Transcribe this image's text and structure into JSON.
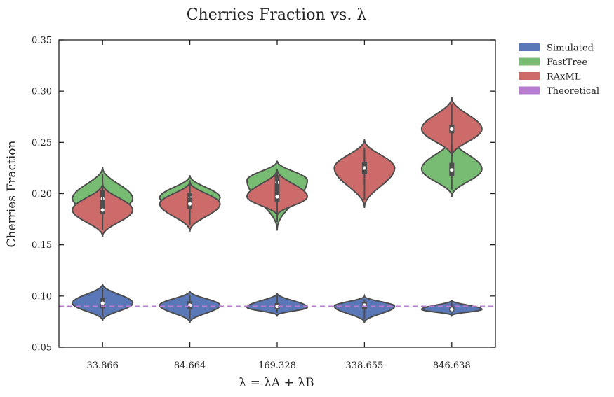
{
  "chart_data": {
    "type": "violin",
    "title": "Cherries Fraction vs. λ",
    "xlabel": "λ = λA + λB",
    "ylabel": "Cherries Fraction",
    "categories": [
      "33.866",
      "84.664",
      "169.328",
      "338.655",
      "846.638"
    ],
    "ylim": [
      0.05,
      0.35
    ],
    "yticks": [
      "0.05",
      "0.10",
      "0.15",
      "0.20",
      "0.25",
      "0.30",
      "0.35"
    ],
    "grid": false,
    "legend_position": "outside-right",
    "series": [
      {
        "name": "Simulated",
        "color": "#5a78b8",
        "violins": [
          {
            "min": 0.076,
            "max": 0.112,
            "mode": 0.093,
            "q1": 0.088,
            "median": 0.093,
            "q3": 0.098
          },
          {
            "min": 0.074,
            "max": 0.105,
            "mode": 0.091,
            "q1": 0.087,
            "median": 0.091,
            "q3": 0.095
          },
          {
            "min": 0.081,
            "max": 0.103,
            "mode": 0.089,
            "q1": 0.087,
            "median": 0.09,
            "q3": 0.093
          },
          {
            "min": 0.074,
            "max": 0.1,
            "mode": 0.09,
            "q1": 0.087,
            "median": 0.091,
            "q3": 0.094
          },
          {
            "min": 0.081,
            "max": 0.096,
            "mode": 0.087,
            "q1": 0.085,
            "median": 0.087,
            "q3": 0.09
          }
        ]
      },
      {
        "name": "FastTree",
        "color": "#78bb72",
        "violins": [
          {
            "min": 0.17,
            "max": 0.226,
            "mode": 0.195,
            "q1": 0.187,
            "median": 0.195,
            "q3": 0.203
          },
          {
            "min": 0.176,
            "max": 0.218,
            "mode": 0.196,
            "q1": 0.19,
            "median": 0.196,
            "q3": 0.201
          },
          {
            "min": 0.164,
            "max": 0.232,
            "mode": 0.213,
            "q1": 0.203,
            "median": 0.211,
            "q3": 0.218
          },
          {
            "min": 0.205,
            "max": 0.245,
            "mode": 0.225,
            "q1": 0.219,
            "median": 0.225,
            "q3": 0.23
          },
          {
            "min": 0.197,
            "max": 0.255,
            "mode": 0.224,
            "q1": 0.217,
            "median": 0.223,
            "q3": 0.23
          }
        ]
      },
      {
        "name": "RAxML",
        "color": "#cd6b6b",
        "violins": [
          {
            "min": 0.158,
            "max": 0.21,
            "mode": 0.184,
            "q1": 0.18,
            "median": 0.184,
            "q3": 0.19
          },
          {
            "min": 0.163,
            "max": 0.212,
            "mode": 0.19,
            "q1": 0.185,
            "median": 0.19,
            "q3": 0.196
          },
          {
            "min": 0.178,
            "max": 0.224,
            "mode": 0.197,
            "q1": 0.192,
            "median": 0.197,
            "q3": 0.204
          },
          {
            "min": 0.186,
            "max": 0.253,
            "mode": 0.225,
            "q1": 0.219,
            "median": 0.225,
            "q3": 0.231
          },
          {
            "min": 0.236,
            "max": 0.294,
            "mode": 0.263,
            "q1": 0.259,
            "median": 0.263,
            "q3": 0.267
          }
        ]
      },
      {
        "name": "Theoretical",
        "color": "#b77ccf",
        "type": "hline",
        "y": 0.09
      }
    ]
  }
}
